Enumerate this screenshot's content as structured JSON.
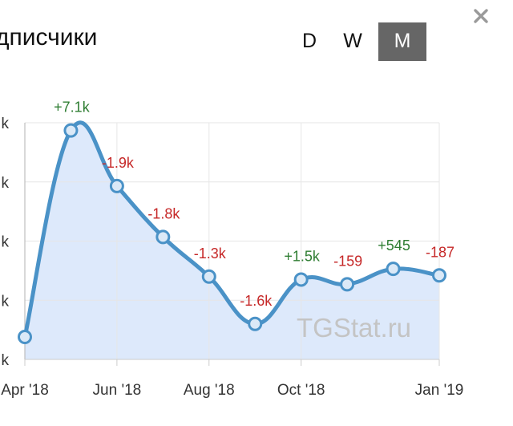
{
  "header": {
    "title": "дписчики",
    "periods": [
      {
        "label": "D",
        "active": false
      },
      {
        "label": "W",
        "active": false
      },
      {
        "label": "M",
        "active": true
      }
    ]
  },
  "watermark": "TGStat.ru",
  "colors": {
    "line": "#4a92c7",
    "area": "#dde9fb",
    "positive": "#2e7d32",
    "negative": "#c62828",
    "grid": "#e6e6e6",
    "active_period": "#666666"
  },
  "icons": {
    "close": "close-icon"
  },
  "chart_data": {
    "type": "area",
    "title": "",
    "xlabel": "",
    "ylabel": "",
    "grid": true,
    "x_tick_labels": [
      "Apr '18",
      "Jun '18",
      "Aug '18",
      "Oct '18",
      "Jan '19"
    ],
    "x_tick_dates": [
      "2018-04",
      "2018-06",
      "2018-08",
      "2018-10",
      "2019-01"
    ],
    "y_tick_labels": [
      "k",
      "k",
      "k",
      "k",
      "k"
    ],
    "ylim": [
      0,
      4
    ],
    "points": [
      {
        "date": "2018-04",
        "value": 0.38,
        "label": ""
      },
      {
        "date": "2018-05",
        "value": 3.87,
        "label": "+7.1k"
      },
      {
        "date": "2018-06",
        "value": 2.93,
        "label": "-1.9k"
      },
      {
        "date": "2018-07",
        "value": 2.07,
        "label": "-1.8k"
      },
      {
        "date": "2018-08",
        "value": 1.4,
        "label": "-1.3k"
      },
      {
        "date": "2018-09",
        "value": 0.6,
        "label": "-1.6k"
      },
      {
        "date": "2018-10",
        "value": 1.35,
        "label": "+1.5k"
      },
      {
        "date": "2018-11",
        "value": 1.27,
        "label": "-159"
      },
      {
        "date": "2018-12",
        "value": 1.53,
        "label": "+545"
      },
      {
        "date": "2019-01",
        "value": 1.42,
        "label": "-187"
      }
    ]
  }
}
